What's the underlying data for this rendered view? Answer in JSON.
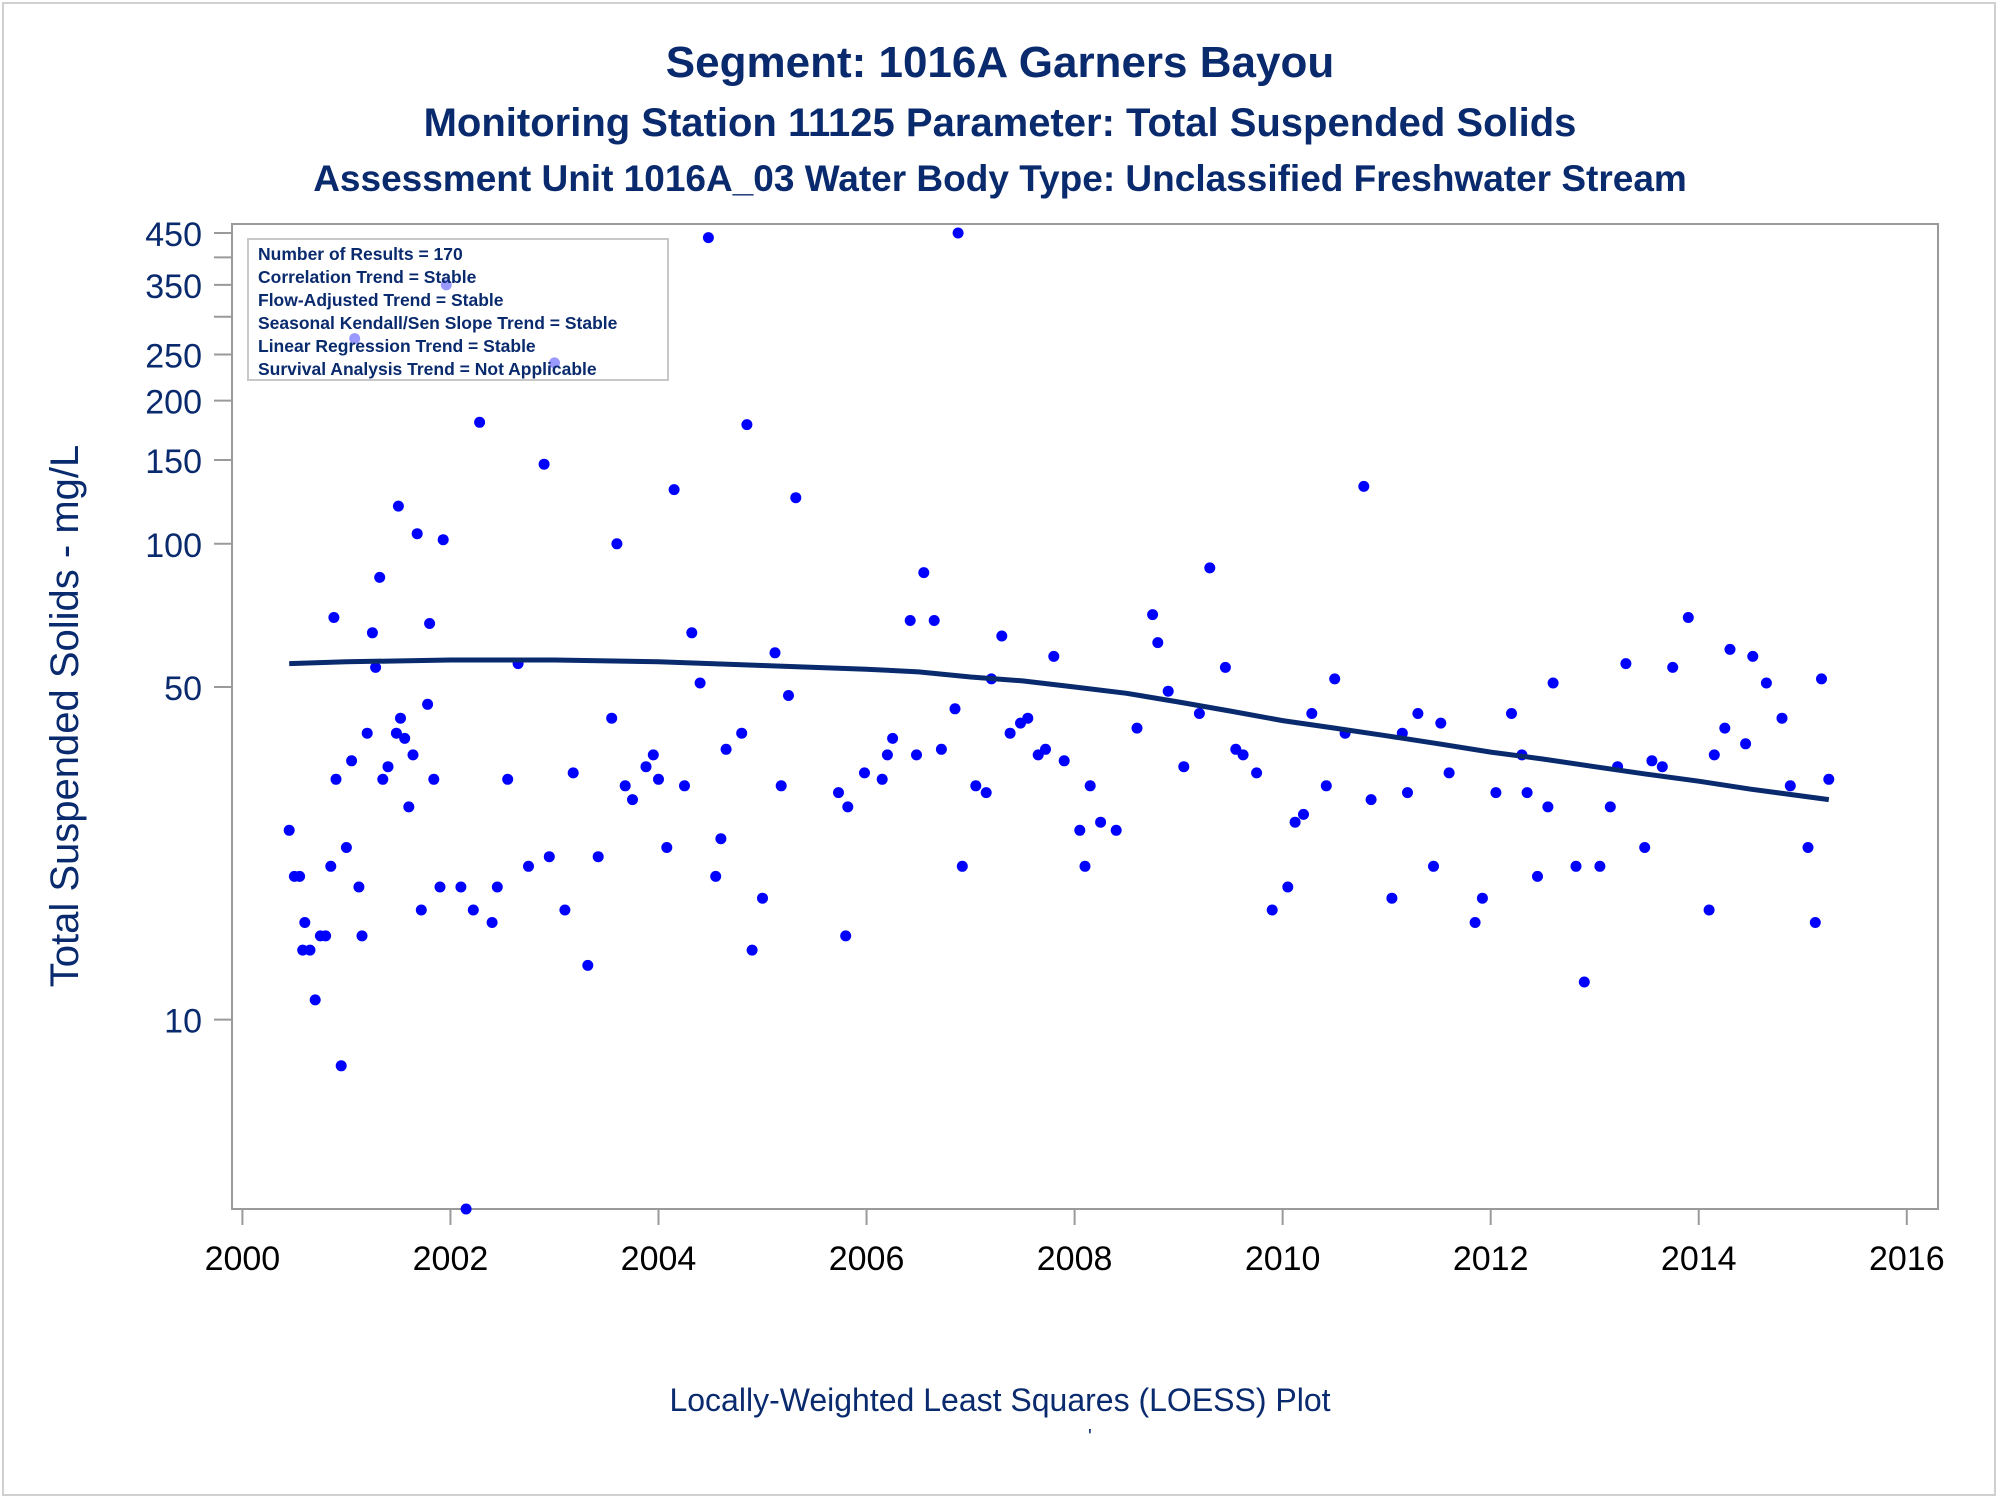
{
  "title_line1": "Segment: 1016A  Garners Bayou",
  "title_line2": "Monitoring Station 11125 Parameter: Total Suspended Solids",
  "title_line3": "Assessment Unit 1016A_03   Water Body Type: Unclassified Freshwater Stream",
  "footnote": "Locally-Weighted Least Squares (LOESS) Plot",
  "footnote_mark": "'",
  "colors": {
    "text": "#0a2a6e",
    "points": "#0000ff",
    "line": "#0a2a6e",
    "axis": "#9a9a9a"
  },
  "chart_data": {
    "type": "scatter",
    "ylabel": "Total Suspended Solids - mg/L",
    "xlabel": "",
    "x_ticks": [
      "2000",
      "2002",
      "2004",
      "2006",
      "2008",
      "2010",
      "2012",
      "2014",
      "2016"
    ],
    "x_tick_values": [
      2000,
      2002,
      2004,
      2006,
      2008,
      2010,
      2012,
      2014,
      2016
    ],
    "y_ticks": [
      {
        "value": 10,
        "label": "10"
      },
      {
        "value": 50,
        "label": "50"
      },
      {
        "value": 100,
        "label": "100"
      },
      {
        "value": 150,
        "label": "150"
      },
      {
        "value": 200,
        "label": "200"
      },
      {
        "value": 250,
        "label": "250"
      },
      {
        "value": 300,
        "label": ""
      },
      {
        "value": 350,
        "label": "350"
      },
      {
        "value": 400,
        "label": ""
      },
      {
        "value": 450,
        "label": "450"
      }
    ],
    "y_scale": "log",
    "xlim": [
      1999.9,
      2016.3
    ],
    "ylim": [
      4,
      470
    ],
    "grid": false,
    "info_box": [
      "Number of Results = 170",
      "Correlation Trend = Stable",
      "Flow-Adjusted Trend = Stable",
      "Seasonal Kendall/Sen Slope Trend = Stable",
      "Linear Regression Trend = Stable",
      "Survival Analysis Trend = Not Applicable"
    ],
    "info_box_position": "top-left",
    "points": [
      [
        2000.45,
        25
      ],
      [
        2000.5,
        20
      ],
      [
        2000.55,
        20
      ],
      [
        2000.58,
        14
      ],
      [
        2000.6,
        16
      ],
      [
        2000.65,
        14
      ],
      [
        2000.7,
        11
      ],
      [
        2000.75,
        15
      ],
      [
        2000.8,
        15
      ],
      [
        2000.85,
        21
      ],
      [
        2000.88,
        70
      ],
      [
        2000.9,
        32
      ],
      [
        2000.95,
        8
      ],
      [
        2001.0,
        23
      ],
      [
        2001.05,
        35
      ],
      [
        2001.08,
        270
      ],
      [
        2001.12,
        19
      ],
      [
        2001.15,
        15
      ],
      [
        2001.2,
        40
      ],
      [
        2001.25,
        65
      ],
      [
        2001.28,
        55
      ],
      [
        2001.32,
        85
      ],
      [
        2001.35,
        32
      ],
      [
        2001.4,
        34
      ],
      [
        2001.48,
        40
      ],
      [
        2001.5,
        120
      ],
      [
        2001.52,
        43
      ],
      [
        2001.56,
        39
      ],
      [
        2001.6,
        28
      ],
      [
        2001.64,
        36
      ],
      [
        2001.68,
        105
      ],
      [
        2001.72,
        17
      ],
      [
        2001.78,
        46
      ],
      [
        2001.8,
        68
      ],
      [
        2001.84,
        32
      ],
      [
        2001.9,
        19
      ],
      [
        2001.93,
        102
      ],
      [
        2001.96,
        350
      ],
      [
        2002.1,
        19
      ],
      [
        2002.15,
        4
      ],
      [
        2002.22,
        17
      ],
      [
        2002.28,
        180
      ],
      [
        2002.4,
        16
      ],
      [
        2002.45,
        19
      ],
      [
        2002.55,
        32
      ],
      [
        2002.65,
        56
      ],
      [
        2002.75,
        21
      ],
      [
        2002.9,
        147
      ],
      [
        2002.95,
        22
      ],
      [
        2003.0,
        240
      ],
      [
        2003.1,
        17
      ],
      [
        2003.18,
        33
      ],
      [
        2003.32,
        13
      ],
      [
        2003.42,
        22
      ],
      [
        2003.55,
        43
      ],
      [
        2003.6,
        100
      ],
      [
        2003.68,
        31
      ],
      [
        2003.75,
        29
      ],
      [
        2003.88,
        34
      ],
      [
        2003.95,
        36
      ],
      [
        2004.0,
        32
      ],
      [
        2004.08,
        23
      ],
      [
        2004.15,
        130
      ],
      [
        2004.25,
        31
      ],
      [
        2004.32,
        65
      ],
      [
        2004.4,
        51
      ],
      [
        2004.48,
        440
      ],
      [
        2004.55,
        20
      ],
      [
        2004.6,
        24
      ],
      [
        2004.65,
        37
      ],
      [
        2004.8,
        40
      ],
      [
        2004.85,
        178
      ],
      [
        2004.9,
        14
      ],
      [
        2005.0,
        18
      ],
      [
        2005.12,
        59
      ],
      [
        2005.18,
        31
      ],
      [
        2005.25,
        48
      ],
      [
        2005.32,
        125
      ],
      [
        2005.73,
        30
      ],
      [
        2005.8,
        15
      ],
      [
        2005.82,
        28
      ],
      [
        2005.98,
        33
      ],
      [
        2006.15,
        32
      ],
      [
        2006.2,
        36
      ],
      [
        2006.25,
        39
      ],
      [
        2006.42,
        69
      ],
      [
        2006.48,
        36
      ],
      [
        2006.55,
        87
      ],
      [
        2006.65,
        69
      ],
      [
        2006.72,
        37
      ],
      [
        2006.85,
        45
      ],
      [
        2006.88,
        450
      ],
      [
        2006.92,
        21
      ],
      [
        2007.05,
        31
      ],
      [
        2007.15,
        30
      ],
      [
        2007.2,
        52
      ],
      [
        2007.3,
        64
      ],
      [
        2007.38,
        40
      ],
      [
        2007.48,
        42
      ],
      [
        2007.55,
        43
      ],
      [
        2007.65,
        36
      ],
      [
        2007.72,
        37
      ],
      [
        2007.8,
        58
      ],
      [
        2007.9,
        35
      ],
      [
        2008.05,
        25
      ],
      [
        2008.1,
        21
      ],
      [
        2008.15,
        31
      ],
      [
        2008.25,
        26
      ],
      [
        2008.4,
        25
      ],
      [
        2008.6,
        41
      ],
      [
        2008.75,
        71
      ],
      [
        2008.8,
        62
      ],
      [
        2008.9,
        49
      ],
      [
        2009.05,
        34
      ],
      [
        2009.2,
        44
      ],
      [
        2009.3,
        89
      ],
      [
        2009.45,
        55
      ],
      [
        2009.55,
        37
      ],
      [
        2009.62,
        36
      ],
      [
        2009.75,
        33
      ],
      [
        2009.9,
        17
      ],
      [
        2010.05,
        19
      ],
      [
        2010.12,
        26
      ],
      [
        2010.2,
        27
      ],
      [
        2010.28,
        44
      ],
      [
        2010.42,
        31
      ],
      [
        2010.5,
        52
      ],
      [
        2010.6,
        40
      ],
      [
        2010.78,
        132
      ],
      [
        2010.85,
        29
      ],
      [
        2011.05,
        18
      ],
      [
        2011.15,
        40
      ],
      [
        2011.2,
        30
      ],
      [
        2011.3,
        44
      ],
      [
        2011.45,
        21
      ],
      [
        2011.52,
        42
      ],
      [
        2011.6,
        33
      ],
      [
        2011.85,
        16
      ],
      [
        2011.92,
        18
      ],
      [
        2012.05,
        30
      ],
      [
        2012.2,
        44
      ],
      [
        2012.3,
        36
      ],
      [
        2012.35,
        30
      ],
      [
        2012.45,
        20
      ],
      [
        2012.55,
        28
      ],
      [
        2012.6,
        51
      ],
      [
        2012.82,
        21
      ],
      [
        2012.9,
        12
      ],
      [
        2013.05,
        21
      ],
      [
        2013.15,
        28
      ],
      [
        2013.22,
        34
      ],
      [
        2013.3,
        56
      ],
      [
        2013.48,
        23
      ],
      [
        2013.55,
        35
      ],
      [
        2013.65,
        34
      ],
      [
        2013.75,
        55
      ],
      [
        2013.9,
        70
      ],
      [
        2014.1,
        17
      ],
      [
        2014.15,
        36
      ],
      [
        2014.25,
        41
      ],
      [
        2014.3,
        60
      ],
      [
        2014.45,
        38
      ],
      [
        2014.52,
        58
      ],
      [
        2014.65,
        51
      ],
      [
        2014.8,
        43
      ],
      [
        2014.88,
        31
      ],
      [
        2015.05,
        23
      ],
      [
        2015.12,
        16
      ],
      [
        2015.18,
        52
      ],
      [
        2015.25,
        32
      ]
    ],
    "loess": [
      [
        2000.45,
        56
      ],
      [
        2001.0,
        56.5
      ],
      [
        2002.0,
        57
      ],
      [
        2003.0,
        57
      ],
      [
        2004.0,
        56.5
      ],
      [
        2005.0,
        55.5
      ],
      [
        2006.0,
        54.5
      ],
      [
        2006.5,
        53.8
      ],
      [
        2007.0,
        52.5
      ],
      [
        2007.5,
        51.5
      ],
      [
        2008.0,
        50
      ],
      [
        2008.5,
        48.5
      ],
      [
        2009.0,
        46.5
      ],
      [
        2009.5,
        44.5
      ],
      [
        2010.0,
        42.5
      ],
      [
        2010.5,
        41
      ],
      [
        2011.0,
        39.5
      ],
      [
        2011.5,
        38
      ],
      [
        2012.0,
        36.5
      ],
      [
        2012.5,
        35.3
      ],
      [
        2013.0,
        34
      ],
      [
        2013.5,
        32.8
      ],
      [
        2014.0,
        31.7
      ],
      [
        2014.5,
        30.5
      ],
      [
        2015.0,
        29.5
      ],
      [
        2015.25,
        29
      ]
    ]
  }
}
